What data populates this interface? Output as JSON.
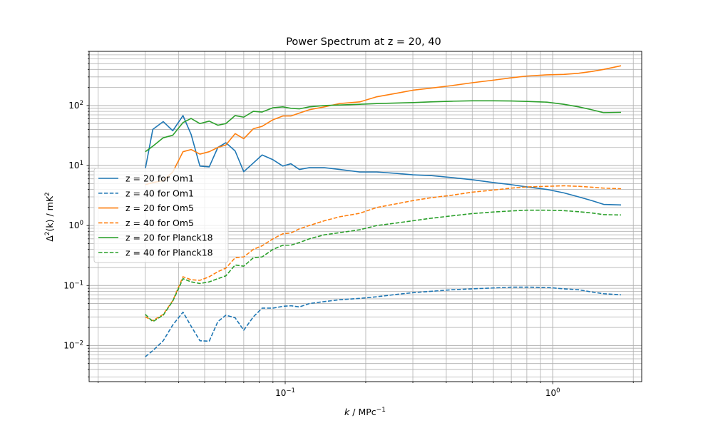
{
  "chart_data": {
    "type": "line",
    "title": "Power Spectrum at z = 20, 40",
    "xlabel_var": "k",
    "xlabel_unit": " / MPc",
    "xlabel_exp": "−1",
    "ylabel_base": "Δ",
    "ylabel_exp": "2",
    "ylabel_var": "(k) / mK",
    "ylabel_unit_exp": "2",
    "x_scale": "log",
    "y_scale": "log",
    "xlim": [
      0.0185,
      2.15
    ],
    "ylim": [
      0.0025,
      800
    ],
    "grid": true,
    "legend_position": "center-left",
    "x_ticks": [
      {
        "value": 0.1,
        "base": "10",
        "exp": "−1"
      },
      {
        "value": 1,
        "base": "10",
        "exp": "0"
      }
    ],
    "y_ticks": [
      {
        "value": 0.01,
        "base": "10",
        "exp": "−2"
      },
      {
        "value": 0.1,
        "base": "10",
        "exp": "−1"
      },
      {
        "value": 1,
        "base": "10",
        "exp": "0"
      },
      {
        "value": 10,
        "base": "10",
        "exp": "1"
      },
      {
        "value": 100,
        "base": "10",
        "exp": "2"
      }
    ],
    "series": [
      {
        "name": "z = 20 for Om1",
        "color": "#1f77b4",
        "dash": "solid",
        "points": [
          [
            0.03,
            8.8
          ],
          [
            0.032,
            40
          ],
          [
            0.035,
            54
          ],
          [
            0.038,
            38
          ],
          [
            0.0415,
            68
          ],
          [
            0.0445,
            33
          ],
          [
            0.048,
            9.8
          ],
          [
            0.052,
            9.5
          ],
          [
            0.056,
            20
          ],
          [
            0.06,
            24
          ],
          [
            0.065,
            17.5
          ],
          [
            0.07,
            7.9
          ],
          [
            0.076,
            11
          ],
          [
            0.082,
            15
          ],
          [
            0.09,
            12.5
          ],
          [
            0.098,
            9.8
          ],
          [
            0.105,
            10.7
          ],
          [
            0.113,
            8.6
          ],
          [
            0.123,
            9.2
          ],
          [
            0.14,
            9.2
          ],
          [
            0.16,
            8.6
          ],
          [
            0.19,
            7.8
          ],
          [
            0.22,
            7.8
          ],
          [
            0.26,
            7.4
          ],
          [
            0.3,
            7.0
          ],
          [
            0.35,
            6.8
          ],
          [
            0.42,
            6.3
          ],
          [
            0.5,
            5.8
          ],
          [
            0.6,
            5.2
          ],
          [
            0.7,
            4.8
          ],
          [
            0.8,
            4.4
          ],
          [
            0.95,
            4.0
          ],
          [
            1.1,
            3.5
          ],
          [
            1.25,
            3.0
          ],
          [
            1.4,
            2.6
          ],
          [
            1.55,
            2.25
          ],
          [
            1.8,
            2.2
          ]
        ]
      },
      {
        "name": "z = 40 for Om1",
        "color": "#1f77b4",
        "dash": "dashed",
        "points": [
          [
            0.03,
            0.0065
          ],
          [
            0.032,
            0.0082
          ],
          [
            0.035,
            0.012
          ],
          [
            0.038,
            0.022
          ],
          [
            0.0415,
            0.036
          ],
          [
            0.0445,
            0.021
          ],
          [
            0.048,
            0.012
          ],
          [
            0.052,
            0.0118
          ],
          [
            0.056,
            0.025
          ],
          [
            0.06,
            0.032
          ],
          [
            0.065,
            0.029
          ],
          [
            0.07,
            0.018
          ],
          [
            0.076,
            0.03
          ],
          [
            0.082,
            0.042
          ],
          [
            0.09,
            0.042
          ],
          [
            0.098,
            0.045
          ],
          [
            0.105,
            0.046
          ],
          [
            0.113,
            0.044
          ],
          [
            0.123,
            0.05
          ],
          [
            0.14,
            0.054
          ],
          [
            0.16,
            0.058
          ],
          [
            0.19,
            0.061
          ],
          [
            0.22,
            0.065
          ],
          [
            0.26,
            0.071
          ],
          [
            0.3,
            0.076
          ],
          [
            0.35,
            0.08
          ],
          [
            0.42,
            0.085
          ],
          [
            0.5,
            0.088
          ],
          [
            0.6,
            0.091
          ],
          [
            0.7,
            0.094
          ],
          [
            0.8,
            0.094
          ],
          [
            0.95,
            0.093
          ],
          [
            1.1,
            0.088
          ],
          [
            1.25,
            0.085
          ],
          [
            1.4,
            0.078
          ],
          [
            1.55,
            0.073
          ],
          [
            1.8,
            0.07
          ]
        ]
      },
      {
        "name": "z = 20 for Om5",
        "color": "#ff7f0e",
        "dash": "solid",
        "points": [
          [
            0.03,
            4.8
          ],
          [
            0.032,
            5.2
          ],
          [
            0.035,
            5.6
          ],
          [
            0.038,
            7.8
          ],
          [
            0.0415,
            17
          ],
          [
            0.0445,
            18.5
          ],
          [
            0.048,
            15.5
          ],
          [
            0.052,
            17
          ],
          [
            0.056,
            20
          ],
          [
            0.06,
            22
          ],
          [
            0.065,
            34
          ],
          [
            0.07,
            28
          ],
          [
            0.076,
            41
          ],
          [
            0.082,
            45
          ],
          [
            0.09,
            58
          ],
          [
            0.098,
            67
          ],
          [
            0.105,
            67
          ],
          [
            0.113,
            75
          ],
          [
            0.123,
            85
          ],
          [
            0.14,
            95
          ],
          [
            0.16,
            108
          ],
          [
            0.19,
            115
          ],
          [
            0.22,
            140
          ],
          [
            0.26,
            160
          ],
          [
            0.3,
            180
          ],
          [
            0.35,
            195
          ],
          [
            0.42,
            215
          ],
          [
            0.5,
            240
          ],
          [
            0.6,
            265
          ],
          [
            0.7,
            290
          ],
          [
            0.8,
            310
          ],
          [
            0.95,
            325
          ],
          [
            1.1,
            330
          ],
          [
            1.25,
            345
          ],
          [
            1.4,
            370
          ],
          [
            1.55,
            400
          ],
          [
            1.8,
            460
          ]
        ]
      },
      {
        "name": "z = 40 for Om5",
        "color": "#ff7f0e",
        "dash": "dashed",
        "points": [
          [
            0.03,
            0.03
          ],
          [
            0.032,
            0.026
          ],
          [
            0.035,
            0.033
          ],
          [
            0.038,
            0.056
          ],
          [
            0.0415,
            0.14
          ],
          [
            0.0445,
            0.125
          ],
          [
            0.048,
            0.122
          ],
          [
            0.052,
            0.14
          ],
          [
            0.056,
            0.17
          ],
          [
            0.06,
            0.195
          ],
          [
            0.065,
            0.29
          ],
          [
            0.07,
            0.3
          ],
          [
            0.076,
            0.4
          ],
          [
            0.082,
            0.46
          ],
          [
            0.09,
            0.6
          ],
          [
            0.098,
            0.73
          ],
          [
            0.105,
            0.75
          ],
          [
            0.113,
            0.88
          ],
          [
            0.123,
            1.0
          ],
          [
            0.14,
            1.2
          ],
          [
            0.16,
            1.4
          ],
          [
            0.19,
            1.6
          ],
          [
            0.22,
            2.0
          ],
          [
            0.26,
            2.3
          ],
          [
            0.3,
            2.6
          ],
          [
            0.35,
            2.9
          ],
          [
            0.42,
            3.2
          ],
          [
            0.5,
            3.6
          ],
          [
            0.6,
            3.9
          ],
          [
            0.7,
            4.2
          ],
          [
            0.8,
            4.4
          ],
          [
            0.95,
            4.5
          ],
          [
            1.1,
            4.6
          ],
          [
            1.25,
            4.5
          ],
          [
            1.4,
            4.35
          ],
          [
            1.55,
            4.2
          ],
          [
            1.8,
            4.1
          ]
        ]
      },
      {
        "name": "z = 20 for Planck18",
        "color": "#2ca02c",
        "dash": "solid",
        "points": [
          [
            0.03,
            17
          ],
          [
            0.032,
            21
          ],
          [
            0.035,
            29
          ],
          [
            0.038,
            32
          ],
          [
            0.0415,
            52
          ],
          [
            0.0445,
            61
          ],
          [
            0.048,
            50
          ],
          [
            0.052,
            55
          ],
          [
            0.056,
            47
          ],
          [
            0.06,
            50
          ],
          [
            0.065,
            68
          ],
          [
            0.07,
            64
          ],
          [
            0.076,
            80
          ],
          [
            0.082,
            78
          ],
          [
            0.09,
            92
          ],
          [
            0.098,
            95
          ],
          [
            0.105,
            90
          ],
          [
            0.113,
            88
          ],
          [
            0.123,
            95
          ],
          [
            0.14,
            100
          ],
          [
            0.16,
            102
          ],
          [
            0.19,
            105
          ],
          [
            0.22,
            108
          ],
          [
            0.26,
            110
          ],
          [
            0.3,
            112
          ],
          [
            0.35,
            115
          ],
          [
            0.42,
            118
          ],
          [
            0.5,
            120
          ],
          [
            0.6,
            120
          ],
          [
            0.7,
            119
          ],
          [
            0.8,
            117
          ],
          [
            0.95,
            114
          ],
          [
            1.1,
            105
          ],
          [
            1.25,
            95
          ],
          [
            1.4,
            85
          ],
          [
            1.55,
            76
          ],
          [
            1.8,
            77
          ]
        ]
      },
      {
        "name": "z = 40 for Planck18",
        "color": "#2ca02c",
        "dash": "dashed",
        "points": [
          [
            0.03,
            0.033
          ],
          [
            0.032,
            0.025
          ],
          [
            0.035,
            0.032
          ],
          [
            0.038,
            0.055
          ],
          [
            0.0415,
            0.13
          ],
          [
            0.0445,
            0.115
          ],
          [
            0.048,
            0.108
          ],
          [
            0.052,
            0.115
          ],
          [
            0.056,
            0.13
          ],
          [
            0.06,
            0.145
          ],
          [
            0.065,
            0.22
          ],
          [
            0.07,
            0.21
          ],
          [
            0.076,
            0.29
          ],
          [
            0.082,
            0.3
          ],
          [
            0.09,
            0.4
          ],
          [
            0.098,
            0.47
          ],
          [
            0.105,
            0.47
          ],
          [
            0.113,
            0.52
          ],
          [
            0.123,
            0.6
          ],
          [
            0.14,
            0.7
          ],
          [
            0.16,
            0.76
          ],
          [
            0.19,
            0.85
          ],
          [
            0.22,
            1.0
          ],
          [
            0.26,
            1.1
          ],
          [
            0.3,
            1.2
          ],
          [
            0.35,
            1.32
          ],
          [
            0.42,
            1.45
          ],
          [
            0.5,
            1.58
          ],
          [
            0.6,
            1.68
          ],
          [
            0.7,
            1.75
          ],
          [
            0.8,
            1.8
          ],
          [
            0.95,
            1.8
          ],
          [
            1.1,
            1.77
          ],
          [
            1.25,
            1.7
          ],
          [
            1.4,
            1.62
          ],
          [
            1.55,
            1.52
          ],
          [
            1.8,
            1.5
          ]
        ]
      }
    ]
  }
}
